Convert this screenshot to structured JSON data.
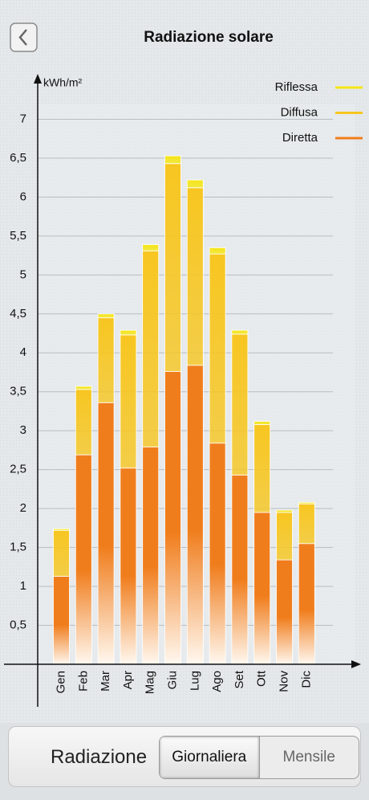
{
  "header": {
    "title": "Radiazione solare"
  },
  "chart_data": {
    "type": "bar",
    "stacked": true,
    "ylabel": "kWh/m²",
    "categories": [
      "Gen",
      "Feb",
      "Mar",
      "Apr",
      "Mag",
      "Giu",
      "Lug",
      "Ago",
      "Set",
      "Ott",
      "Nov",
      "Dic"
    ],
    "series": [
      {
        "name": "Diretta",
        "color": "#f07d1c",
        "values": [
          1.13,
          2.69,
          3.36,
          2.52,
          2.79,
          3.76,
          3.84,
          2.84,
          2.43,
          1.95,
          1.34,
          1.55
        ]
      },
      {
        "name": "Diffusa",
        "color": "#f7c620",
        "values": [
          0.59,
          0.84,
          1.09,
          1.71,
          2.52,
          2.67,
          2.28,
          2.43,
          1.81,
          1.13,
          0.61,
          0.51
        ]
      },
      {
        "name": "Riflessa",
        "color": "#f5e617",
        "values": [
          0.02,
          0.04,
          0.05,
          0.06,
          0.08,
          0.1,
          0.1,
          0.08,
          0.05,
          0.04,
          0.03,
          0.02
        ]
      }
    ],
    "ylim": [
      0,
      7.5
    ],
    "yticks": [
      {
        "value": 0.5,
        "label": "0,5"
      },
      1,
      {
        "value": 1.5,
        "label": "1,5"
      },
      2,
      {
        "value": 2.5,
        "label": "2,5"
      },
      3,
      {
        "value": 3.5,
        "label": "3,5"
      },
      4,
      {
        "value": 4.5,
        "label": "4,5"
      },
      5,
      {
        "value": 5.5,
        "label": "5,5"
      },
      6,
      {
        "value": 6.5,
        "label": "6,5"
      },
      7
    ],
    "grid": true,
    "legend": "top-right"
  },
  "controls": {
    "label": "Radiazione",
    "options": [
      "Giornaliera",
      "Mensile"
    ]
  }
}
